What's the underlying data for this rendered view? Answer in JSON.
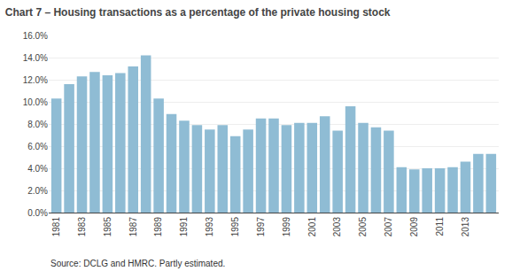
{
  "chart_data": {
    "type": "bar",
    "title": "Chart 7 – Housing transactions as a percentage of the private housing stock",
    "annotations": [
      "Source: DCLG and HMRC. Partly estimated."
    ],
    "x": [
      1981,
      1982,
      1983,
      1984,
      1985,
      1986,
      1987,
      1988,
      1989,
      1990,
      1991,
      1992,
      1993,
      1994,
      1995,
      1996,
      1997,
      1998,
      1999,
      2000,
      2001,
      2002,
      2003,
      2004,
      2005,
      2006,
      2007,
      2008,
      2009,
      2010,
      2011,
      2012,
      2013,
      2014,
      2015
    ],
    "values": [
      0.103,
      0.116,
      0.123,
      0.127,
      0.124,
      0.126,
      0.132,
      0.142,
      0.103,
      0.089,
      0.083,
      0.079,
      0.075,
      0.079,
      0.069,
      0.075,
      0.085,
      0.085,
      0.079,
      0.081,
      0.081,
      0.087,
      0.074,
      0.096,
      0.081,
      0.077,
      0.074,
      0.041,
      0.039,
      0.04,
      0.04,
      0.041,
      0.046,
      0.053,
      0.053
    ],
    "color": "#8fbcd4",
    "xlim": [
      1980.4,
      2015.6
    ],
    "xticks": [
      1981,
      1983,
      1985,
      1987,
      1989,
      1991,
      1993,
      1995,
      1997,
      1999,
      2001,
      2003,
      2005,
      2007,
      2009,
      2011,
      2013
    ],
    "ylim": [
      0,
      0.16
    ],
    "yticks": [
      {
        "value": 0.0,
        "label": "0.0%"
      },
      {
        "value": 0.02,
        "label": "2.0%"
      },
      {
        "value": 0.04,
        "label": "4.0%"
      },
      {
        "value": 0.06,
        "label": "6.0%"
      },
      {
        "value": 0.08,
        "label": "8.0%"
      },
      {
        "value": 0.1,
        "label": "10.0%"
      },
      {
        "value": 0.12,
        "label": "12.0%"
      },
      {
        "value": 0.14,
        "label": "14.0%"
      },
      {
        "value": 0.16,
        "label": "16.0%"
      }
    ],
    "grid": true
  }
}
